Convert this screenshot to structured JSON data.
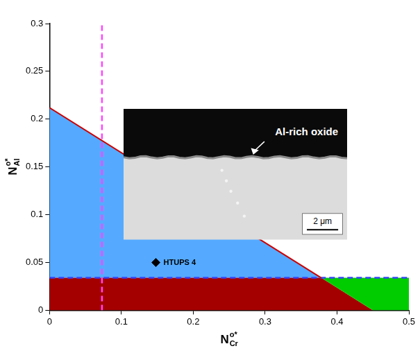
{
  "chart_data": {
    "type": "scatter",
    "xlabel": {
      "text": "N",
      "superscript": "o*",
      "subscript": "Cr"
    },
    "ylabel": {
      "text": "N",
      "superscript": "o*",
      "subscript": "Al"
    },
    "xlim": [
      0,
      0.5
    ],
    "xticks": [
      0,
      0.1,
      0.2,
      0.3,
      0.4,
      0.5
    ],
    "ylim": [
      0,
      0.3
    ],
    "yticks": [
      0,
      0.05,
      0.1,
      0.15,
      0.2,
      0.25,
      0.3
    ],
    "grid": false,
    "regions": [
      {
        "color": "#55aaff",
        "x": [
          0,
          0,
          0.378
        ],
        "y": [
          0.034,
          0.212,
          0.034
        ]
      },
      {
        "color": "#a50000",
        "x": [
          0,
          0,
          0.378,
          0.45
        ],
        "y": [
          0,
          0.034,
          0.034,
          0
        ]
      },
      {
        "color": "#00cc00",
        "x": [
          0.378,
          0.5,
          0.5,
          0.45
        ],
        "y": [
          0.034,
          0.034,
          0,
          0
        ]
      }
    ],
    "lines": [
      {
        "color": "#cc0000",
        "line_style": "solid",
        "x": [
          0,
          0.378
        ],
        "y": [
          0.212,
          0.034
        ]
      },
      {
        "color": "#3344ff",
        "line_style": "dashed",
        "x": [
          0,
          0.5
        ],
        "y": [
          0.034,
          0.034
        ]
      },
      {
        "color": "#ff44ff",
        "line_style": "dashed",
        "x": [
          0.073,
          0.073
        ],
        "y": [
          0,
          0.3
        ]
      }
    ],
    "points": [
      {
        "label": "HTUPS 4",
        "color": "#000000",
        "marker": "diamond",
        "x": 0.148,
        "y": 0.05
      }
    ],
    "inset": {
      "label": "Al-rich oxide",
      "scale_bar": "2 μm"
    }
  }
}
